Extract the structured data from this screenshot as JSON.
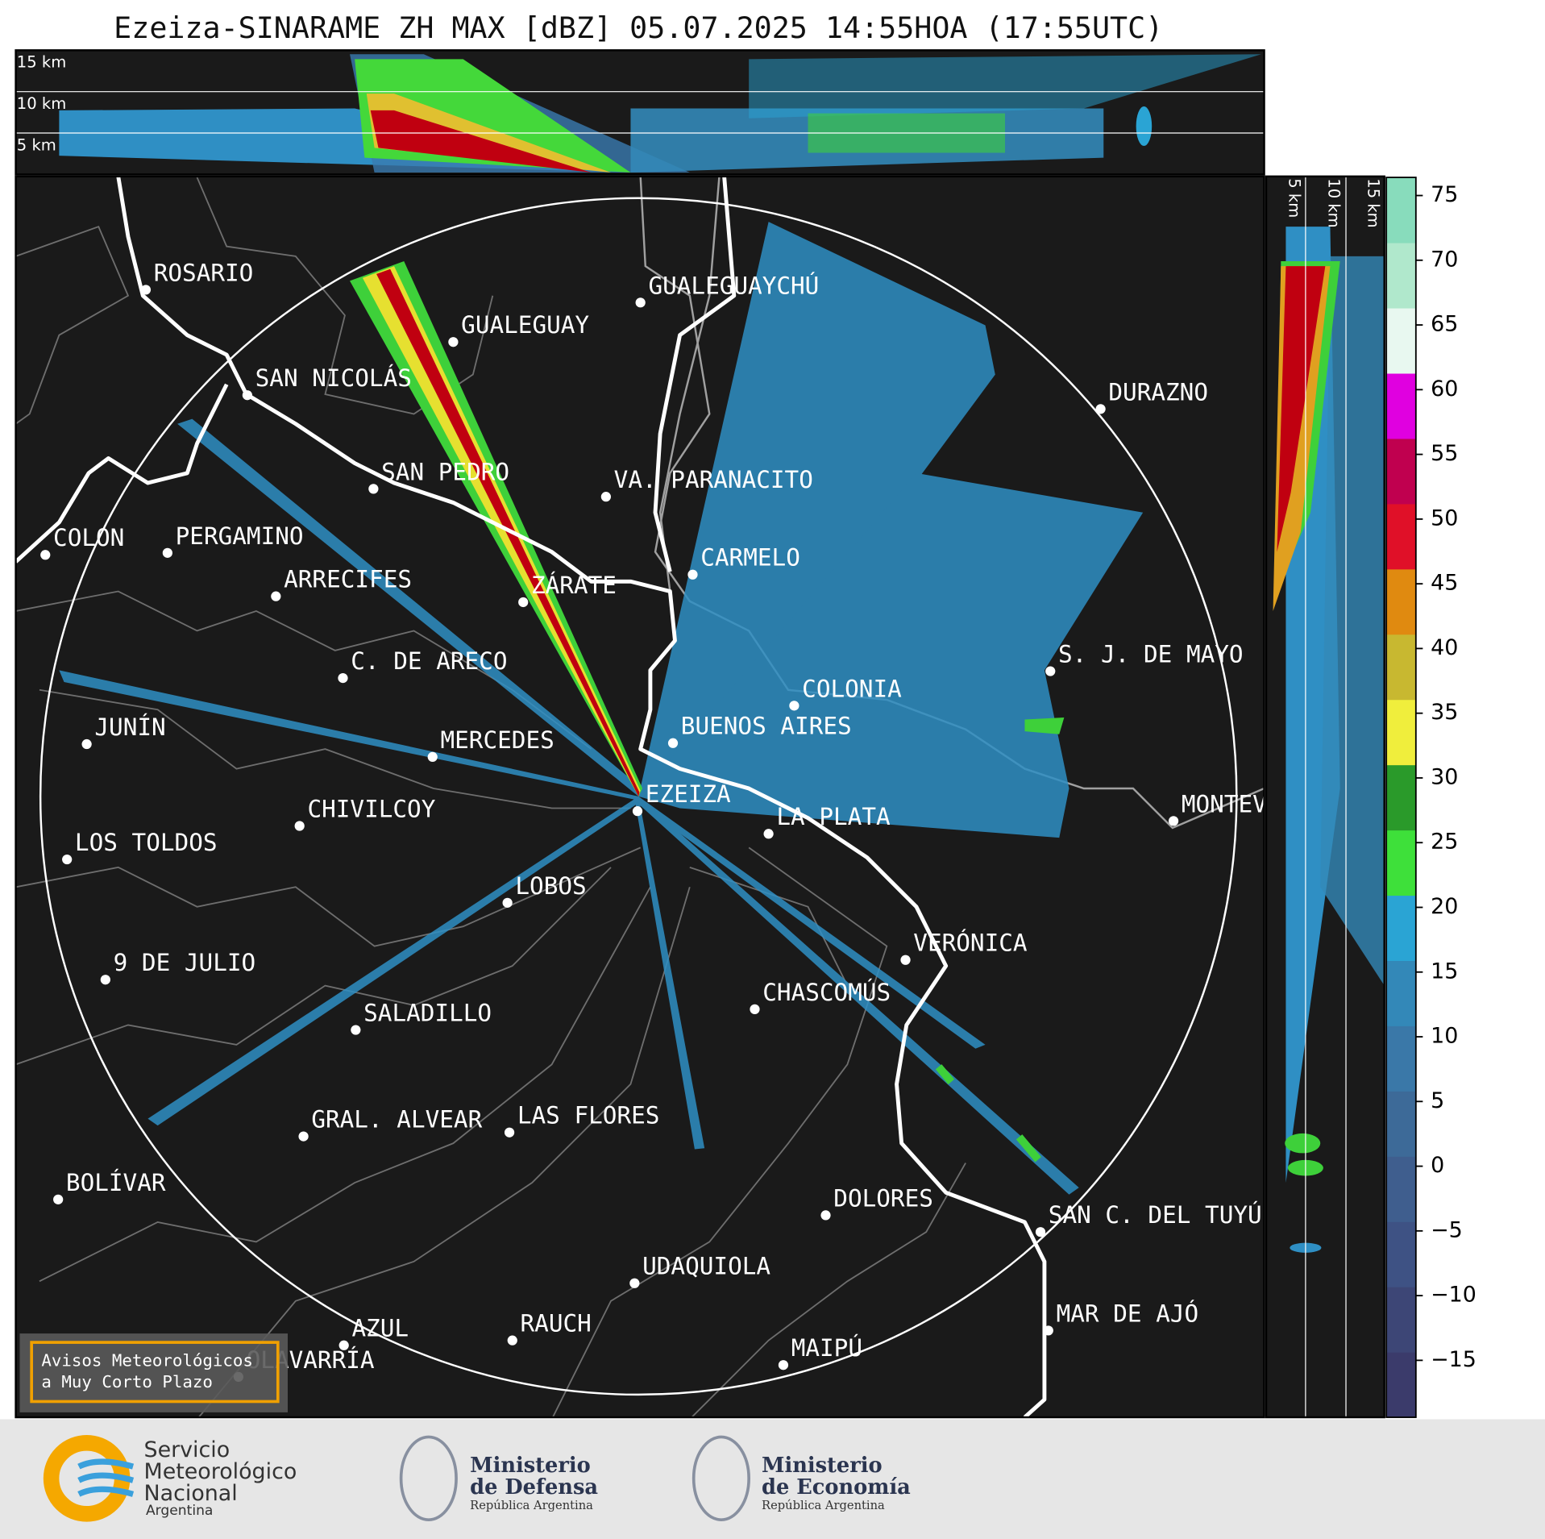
{
  "title": "Ezeiza-SINARAME ZH MAX [dBZ] 05.07.2025 14:55HOA (17:55UTC)",
  "top_panel": {
    "labels": [
      "15 km",
      "10 km",
      "5 km"
    ]
  },
  "side_panel": {
    "labels": [
      "5 km",
      "10 km",
      "15 km"
    ]
  },
  "cities": [
    "ROSARIO",
    "GUALEGUAYCHÚ",
    "GUALEGUAY",
    "SAN NICOLÁS",
    "DURAZNO",
    "SAN PEDRO",
    "VA. PARANACITO",
    "COLON",
    "PERGAMINO",
    "CARMELO",
    "ARRECIFES",
    "ZÁRATE",
    "S. J. DE MAYO",
    "C. DE ARECO",
    "COLONIA",
    "BUENOS AIRES",
    "JUNÍN",
    "MERCEDES",
    "EZEIZA",
    "CHIVILCOY",
    "MONTEVIDEO",
    "LA PLATA",
    "LOS TOLDOS",
    "LOBOS",
    "VERÓNICA",
    "9 DE JULIO",
    "CHASCOMÚS",
    "SALADILLO",
    "LAS FLORES",
    "GRAL. ALVEAR",
    "BOLÍVAR",
    "DOLORES",
    "SAN C. DEL TUYÚ",
    "UDAQUIOLA",
    "RAUCH",
    "MAR DE AJÓ",
    "AZUL",
    "OLAVARRÍA",
    "MAIPÚ"
  ],
  "colorbar": {
    "range": [
      -19.4,
      76.4
    ],
    "ticks": [
      75,
      70,
      65,
      60,
      55,
      50,
      45,
      40,
      35,
      30,
      25,
      20,
      15,
      10,
      5,
      0,
      {
        "value": -5,
        "label": "−5"
      },
      {
        "value": -10,
        "label": "−10"
      },
      {
        "value": -15,
        "label": "−15"
      }
    ],
    "colors": [
      "#3b3b6b",
      "#3d4676",
      "#3e5284",
      "#3f5e8e",
      "#3d6a98",
      "#3a78a8",
      "#3388b8",
      "#2aa4d4",
      "#3ee03a",
      "#2a9a2a",
      "#f0ee3c",
      "#c8b830",
      "#e08a10",
      "#e01028",
      "#c0004f",
      "#e000e0",
      "#e8f8f0",
      "#b0e8cc",
      "#88dcbc"
    ]
  },
  "notice": [
    "Avisos Meteorológicos",
    "a Muy Corto Plazo"
  ],
  "logos": [
    {
      "lines": [
        "Servicio",
        "Meteorológico",
        "Nacional"
      ],
      "sub": "Argentina"
    },
    {
      "lines": [
        "Ministerio",
        "de Defensa"
      ],
      "sub": "República Argentina"
    },
    {
      "lines": [
        "Ministerio",
        "de Economía"
      ],
      "sub": "República Argentina"
    }
  ]
}
